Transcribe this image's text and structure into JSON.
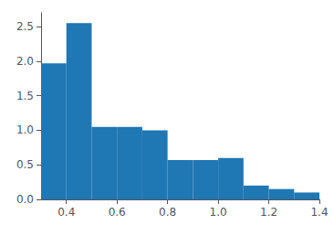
{
  "chart_data": {
    "type": "histogram",
    "bins": [
      0.3,
      0.4,
      0.5,
      0.6,
      0.7,
      0.8,
      0.9,
      1.0,
      1.1,
      1.2,
      1.3,
      1.4
    ],
    "values": [
      1.97,
      2.55,
      1.05,
      1.05,
      1.0,
      0.57,
      0.57,
      0.6,
      0.2,
      0.15,
      0.1
    ],
    "color": "#1f77b4",
    "xlim": [
      0.3,
      1.4
    ],
    "xticks": [
      0.4,
      0.6,
      0.8,
      {
        "value": 1.0,
        "label": "1.0"
      },
      1.2,
      1.4
    ],
    "ylim": [
      0.0,
      2.7
    ],
    "yticks": [
      {
        "value": 0.0,
        "label": "0.0"
      },
      0.5,
      {
        "value": 1.0,
        "label": "1.0"
      },
      1.5,
      {
        "value": 2.0,
        "label": "2.0"
      },
      2.5
    ],
    "grid": false
  }
}
